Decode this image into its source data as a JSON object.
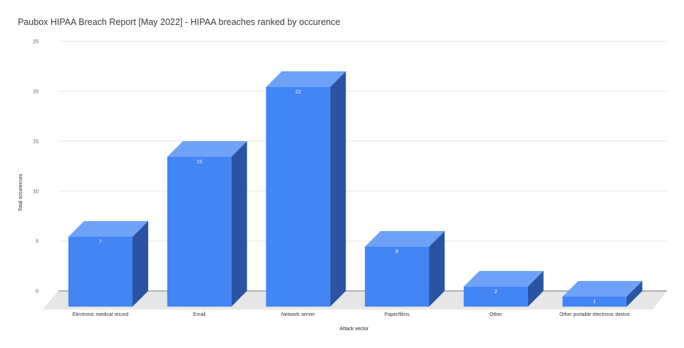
{
  "chart_data": {
    "type": "bar",
    "title": "Paubox HIPAA Breach Report [May 2022] - HIPAA breaches ranked by occurence",
    "xlabel": "Attack vector",
    "ylabel": "Total occurences",
    "categories": [
      "Electronic medical record",
      "Email",
      "Network server",
      "Paper/films",
      "Other",
      "Other portable electronic device"
    ],
    "values": [
      7,
      15,
      22,
      6,
      2,
      1
    ],
    "yticks": [
      0,
      5,
      10,
      15,
      20,
      25
    ],
    "ylim": [
      0,
      25
    ],
    "grid": true,
    "style": "3d",
    "colors": {
      "front": "#4285f4",
      "top": "#6ea2f7",
      "side": "#2a54a3",
      "floor": "#e6e6e6",
      "grid": "#dddddd"
    }
  }
}
